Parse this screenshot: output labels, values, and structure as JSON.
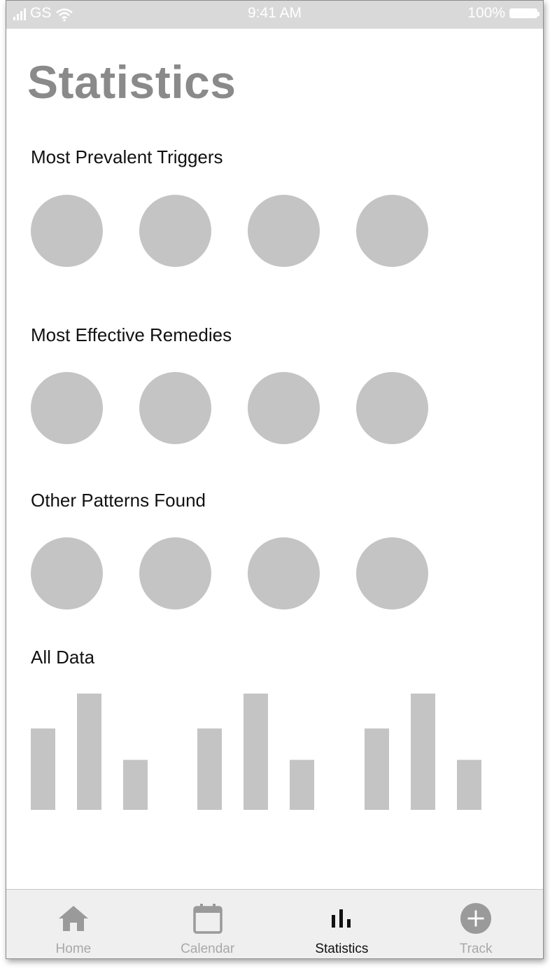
{
  "status_bar": {
    "carrier": "GS",
    "time": "9:41 AM",
    "battery": "100%"
  },
  "page": {
    "title": "Statistics"
  },
  "sections": [
    {
      "title": "Most Prevalent Triggers",
      "items": 4
    },
    {
      "title": "Most Effective Remedies",
      "items": 4
    },
    {
      "title": "Other Patterns Found",
      "items": 4
    },
    {
      "title": "All Data"
    }
  ],
  "chart_data": {
    "type": "bar",
    "groups": [
      {
        "values": [
          0.7,
          1.0,
          0.43
        ]
      },
      {
        "values": [
          0.7,
          1.0,
          0.43
        ]
      },
      {
        "values": [
          0.7,
          1.0,
          0.43
        ]
      }
    ],
    "bar_color": "#c4c4c4"
  },
  "tab_bar": {
    "items": [
      {
        "label": "Home",
        "icon": "home-icon",
        "active": false
      },
      {
        "label": "Calendar",
        "icon": "calendar-icon",
        "active": false
      },
      {
        "label": "Statistics",
        "icon": "bar-chart-icon",
        "active": true
      },
      {
        "label": "Track",
        "icon": "plus-circle-icon",
        "active": false
      }
    ]
  },
  "colors": {
    "placeholder": "#c4c4c4",
    "title": "#8a8a8a",
    "status_bar": "#d9d9d9",
    "tab_bar": "#efefef",
    "icon_inactive": "#9a9a9a",
    "icon_active": "#111111"
  }
}
